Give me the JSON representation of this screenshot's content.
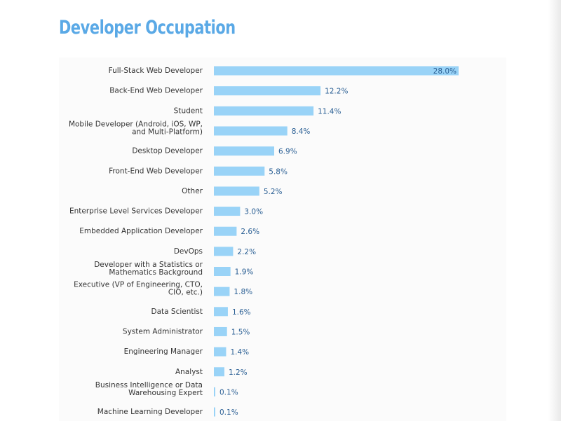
{
  "title": "Developer Occupation",
  "colors": {
    "title": "#5aa9e6",
    "bar": "#99d3f7",
    "value_label": "#2a5f94"
  },
  "chart_data": {
    "type": "bar",
    "orientation": "horizontal",
    "categories": [
      [
        "Full-Stack Web Developer"
      ],
      [
        "Back-End Web Developer"
      ],
      [
        "Student"
      ],
      [
        "Mobile Developer (Android, iOS, WP,",
        "and Multi-Platform)"
      ],
      [
        "Desktop Developer"
      ],
      [
        "Front-End Web Developer"
      ],
      [
        "Other"
      ],
      [
        "Enterprise Level Services Developer"
      ],
      [
        "Embedded Application Developer"
      ],
      [
        "DevOps"
      ],
      [
        "Developer with a Statistics or",
        "Mathematics Background"
      ],
      [
        "Executive (VP of Engineering, CTO,",
        "CIO, etc.)"
      ],
      [
        "Data Scientist"
      ],
      [
        "System Administrator"
      ],
      [
        "Engineering Manager"
      ],
      [
        "Analyst"
      ],
      [
        "Business Intelligence or Data",
        "Warehousing Expert"
      ],
      [
        "Machine Learning Developer"
      ]
    ],
    "values": [
      28.0,
      12.2,
      11.4,
      8.4,
      6.9,
      5.8,
      5.2,
      3.0,
      2.6,
      2.2,
      1.9,
      1.8,
      1.6,
      1.5,
      1.4,
      1.2,
      0.1,
      0.1
    ],
    "value_labels": [
      "28.0%",
      "12.2%",
      "11.4%",
      "8.4%",
      "6.9%",
      "5.8%",
      "5.2%",
      "3.0%",
      "2.6%",
      "2.2%",
      "1.9%",
      "1.8%",
      "1.6%",
      "1.5%",
      "1.4%",
      "1.2%",
      "0.1%",
      "0.1%"
    ],
    "unit": "%",
    "xlim": [
      0,
      28.0
    ],
    "grid": false,
    "legend": "none"
  }
}
